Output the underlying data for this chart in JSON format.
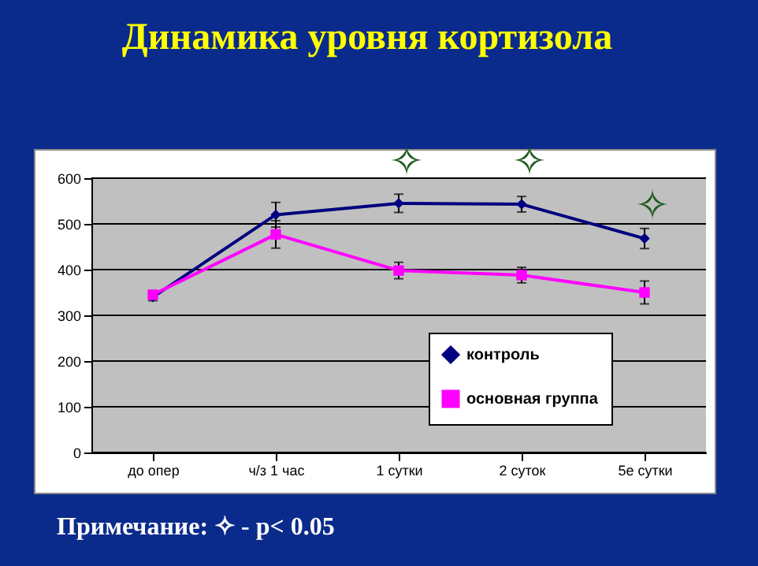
{
  "chart_data": {
    "type": "line",
    "title": "Динамика уровня кортизола",
    "categories": [
      "до опер",
      "ч/з 1 час",
      "1 сутки",
      "2 суток",
      "5е сутки"
    ],
    "series": [
      {
        "name": "контроль",
        "color": "#000080",
        "marker": "diamond",
        "values": [
          340,
          520,
          545,
          543,
          468
        ],
        "errors": [
          8,
          27,
          20,
          17,
          22
        ]
      },
      {
        "name": "основная группа",
        "color": "#ff00ff",
        "marker": "square",
        "values": [
          345,
          477,
          398,
          388,
          350
        ],
        "errors": [
          8,
          30,
          18,
          17,
          25
        ]
      }
    ],
    "ylim": [
      0,
      600
    ],
    "yticks": [
      0,
      100,
      200,
      300,
      400,
      500,
      600
    ],
    "grid": "y",
    "legend": "bottom right",
    "annotations": [
      "✧",
      "✧",
      "✧",
      "Примечание: ✧ - p< 0.05"
    ]
  }
}
